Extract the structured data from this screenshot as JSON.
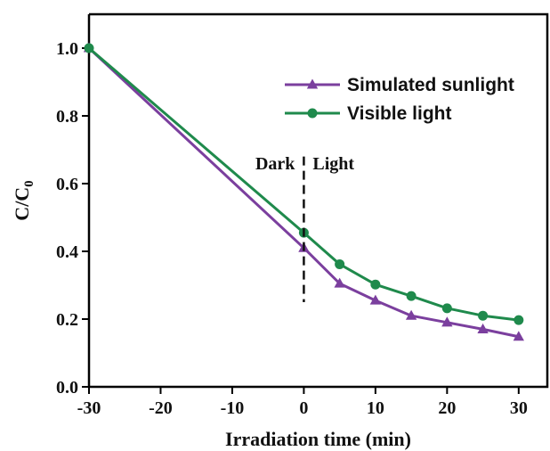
{
  "chart_data": {
    "type": "line",
    "xlabel": "Irradiation time (min)",
    "ylabel": "C/C",
    "ylabel_subscript": "0",
    "xlim": [
      -30,
      34
    ],
    "ylim": [
      0.0,
      1.1
    ],
    "xticks": [
      -30,
      -20,
      -10,
      0,
      10,
      20,
      30
    ],
    "xtick_labels": [
      "-30",
      "-20",
      "-10",
      "0",
      "10",
      "20",
      "30"
    ],
    "yticks": [
      0.0,
      0.2,
      0.4,
      0.6,
      0.8,
      1.0
    ],
    "ytick_labels": [
      "0.0",
      "0.2",
      "0.4",
      "0.6",
      "0.8",
      "1.0"
    ],
    "grid": false,
    "legend_position": "top-right",
    "annotations": {
      "left": "Dark",
      "right": "Light",
      "divider_x": 0,
      "divider_y_range": [
        0.25,
        0.68
      ]
    },
    "series": [
      {
        "name": "Simulated sunlight",
        "color": "#7b3f9e",
        "marker": "triangle",
        "x": [
          -30,
          0,
          5,
          10,
          15,
          20,
          25,
          30
        ],
        "y": [
          1.0,
          0.41,
          0.305,
          0.255,
          0.21,
          0.19,
          0.17,
          0.148
        ]
      },
      {
        "name": "Visible light",
        "color": "#1f8a4c",
        "marker": "circle",
        "x": [
          -30,
          0,
          5,
          10,
          15,
          20,
          25,
          30
        ],
        "y": [
          1.0,
          0.455,
          0.362,
          0.302,
          0.268,
          0.232,
          0.21,
          0.197
        ]
      }
    ]
  }
}
